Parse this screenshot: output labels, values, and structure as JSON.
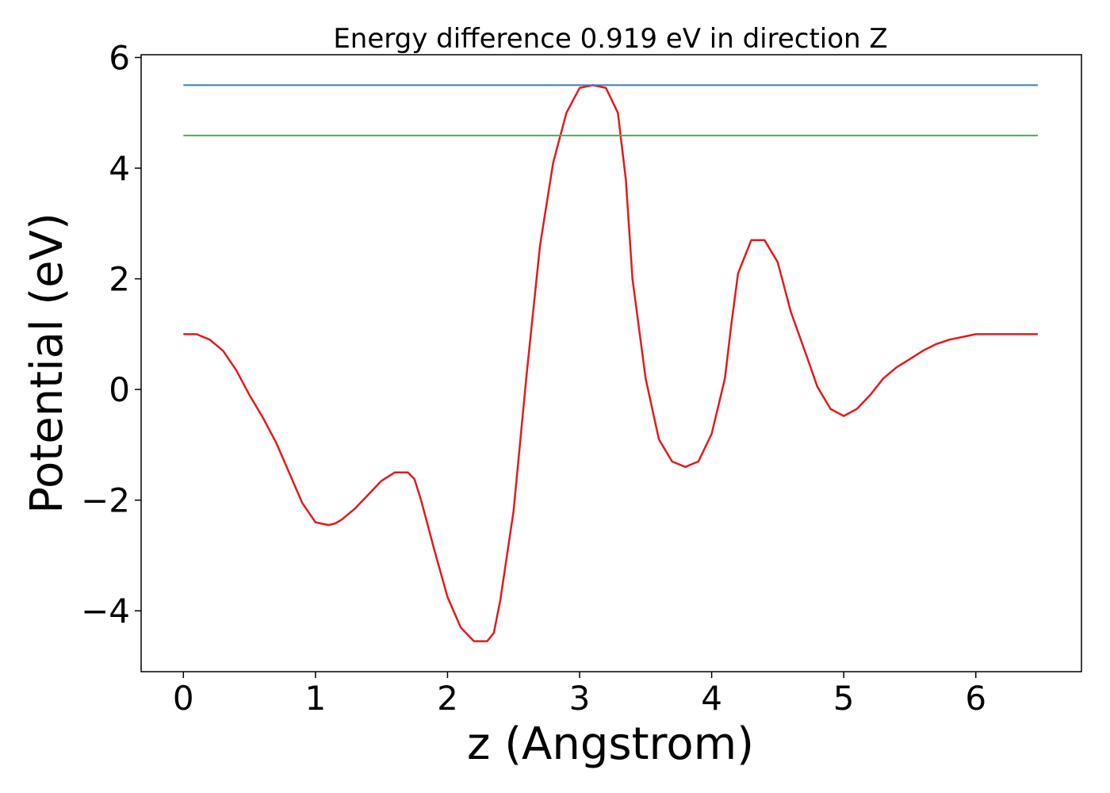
{
  "colors": {
    "curve": "#e41a1c",
    "upper_line": "#377eb8",
    "lower_line": "#4daf4a",
    "axis": "#000000"
  },
  "chart_data": {
    "type": "line",
    "title": "Energy difference 0.919 eV in direction Z",
    "xlabel": "z (Angstrom)",
    "ylabel": "Potential (eV)",
    "xlim": [
      -0.32,
      6.8
    ],
    "ylim": [
      -5.1,
      6.05
    ],
    "grid": false,
    "xticks": [
      0,
      1,
      2,
      3,
      4,
      5,
      6
    ],
    "xtick_labels": [
      "0",
      "1",
      "2",
      "3",
      "4",
      "5",
      "6"
    ],
    "yticks": [
      -4,
      -2,
      0,
      2,
      4,
      6
    ],
    "ytick_labels": [
      "−4",
      "−2",
      "0",
      "2",
      "4",
      "6"
    ],
    "series": [
      {
        "x": [
          0.0,
          0.1,
          0.2,
          0.3,
          0.4,
          0.5,
          0.6,
          0.7,
          0.8,
          0.9,
          1.0,
          1.1,
          1.15,
          1.2,
          1.3,
          1.4,
          1.5,
          1.6,
          1.7,
          1.75,
          1.8,
          1.9,
          2.0,
          2.1,
          2.2,
          2.3,
          2.35,
          2.4,
          2.5,
          2.6,
          2.7,
          2.8,
          2.9,
          3.0,
          3.1,
          3.2,
          3.29,
          3.35,
          3.4,
          3.5,
          3.6,
          3.7,
          3.8,
          3.9,
          4.0,
          4.1,
          4.15,
          4.2,
          4.3,
          4.4,
          4.5,
          4.6,
          4.72,
          4.8,
          4.9,
          5.0,
          5.1,
          5.2,
          5.3,
          5.4,
          5.5,
          5.6,
          5.7,
          5.8,
          5.9,
          6.0,
          6.1,
          6.2,
          6.3,
          6.4,
          6.47
        ],
        "y": [
          1.0,
          1.0,
          0.9,
          0.7,
          0.35,
          -0.1,
          -0.5,
          -0.95,
          -1.5,
          -2.05,
          -2.4,
          -2.45,
          -2.42,
          -2.35,
          -2.15,
          -1.9,
          -1.65,
          -1.5,
          -1.5,
          -1.62,
          -2.0,
          -2.9,
          -3.75,
          -4.3,
          -4.55,
          -4.55,
          -4.4,
          -3.8,
          -2.2,
          0.3,
          2.6,
          4.1,
          5.0,
          5.45,
          5.5,
          5.45,
          5.0,
          3.8,
          2.0,
          0.2,
          -0.9,
          -1.3,
          -1.4,
          -1.3,
          -0.8,
          0.2,
          1.2,
          2.1,
          2.7,
          2.7,
          2.3,
          1.4,
          0.6,
          0.05,
          -0.35,
          -0.48,
          -0.35,
          -0.1,
          0.2,
          0.4,
          0.55,
          0.7,
          0.82,
          0.9,
          0.95,
          1.0,
          1.0,
          1.0,
          1.0,
          1.0,
          1.0
        ]
      },
      {
        "x": [
          0.0,
          6.47
        ],
        "y": [
          5.5,
          5.5
        ]
      },
      {
        "x": [
          0.0,
          6.47
        ],
        "y": [
          4.59,
          4.59
        ]
      }
    ]
  }
}
